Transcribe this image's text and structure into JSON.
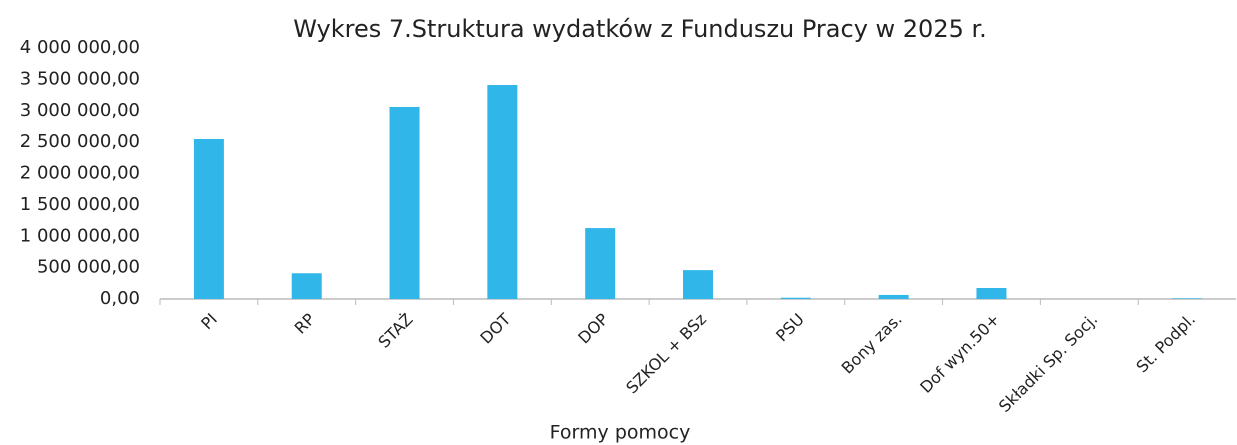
{
  "chart_data": {
    "type": "bar",
    "title": "Wykres 7.Struktura wydatków z Funduszu Pracy w 2025 r.",
    "x_label": "Formy pomocy",
    "categories": [
      "PI",
      "RP",
      "STAŻ",
      "DOT",
      "DOP",
      "SZKOL + BSz",
      "PSU",
      "Bony zas.",
      "Dof wyn.50+",
      "Składki Sp. Socj.",
      "St. Podpl."
    ],
    "values": [
      2550000,
      410000,
      3060000,
      3410000,
      1130000,
      460000,
      20000,
      65000,
      175000,
      0,
      10000
    ],
    "color": "#31b6ea",
    "ylim": [
      0,
      4000000
    ],
    "yticks": [
      {
        "value": 0,
        "label": "0,00"
      },
      {
        "value": 500000,
        "label": "500 000,00"
      },
      {
        "value": 1000000,
        "label": "1 000 000,00"
      },
      {
        "value": 1500000,
        "label": "1 500 000,00"
      },
      {
        "value": 2000000,
        "label": "2 000 000,00"
      },
      {
        "value": 2500000,
        "label": "2 500 000,00"
      },
      {
        "value": 3000000,
        "label": "3 000 000,00"
      },
      {
        "value": 3500000,
        "label": "3 500 000,00"
      },
      {
        "value": 4000000,
        "label": "4 000 000,00"
      }
    ],
    "grid": false
  }
}
